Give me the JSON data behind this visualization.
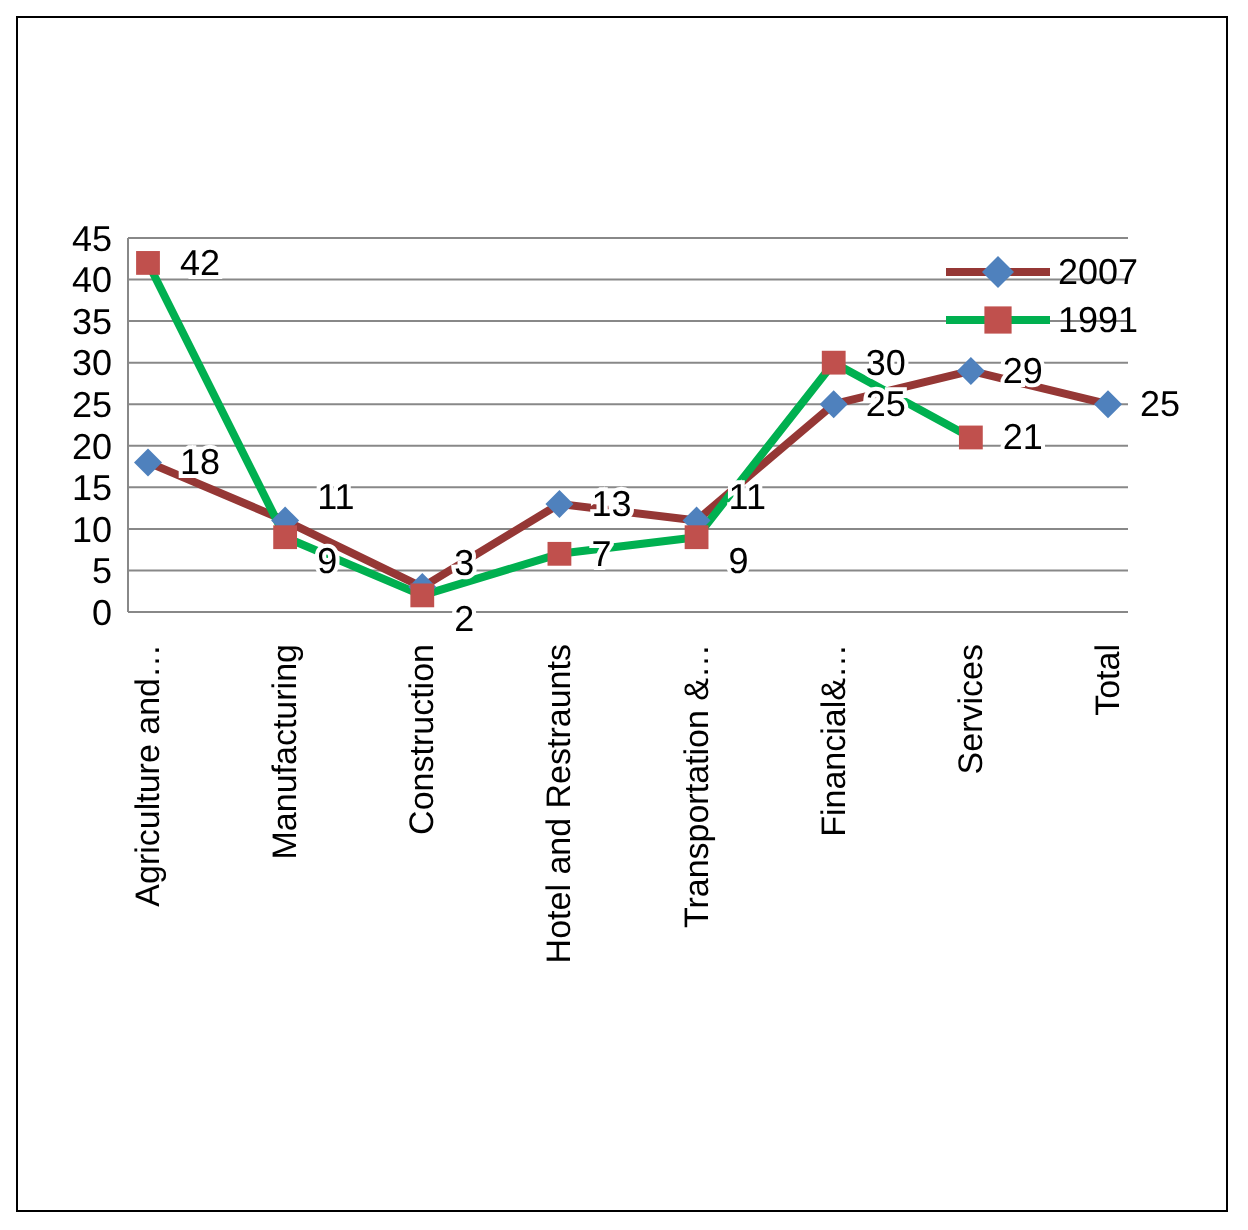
{
  "chart_data": {
    "type": "line",
    "categories": [
      "Agriculture and…",
      "Manufacturing",
      "Construction",
      "Hotel and Restraunts",
      "Transportation &…",
      "Financial&…",
      "Services",
      "Total"
    ],
    "series": [
      {
        "name": "2007",
        "color": "#953735",
        "marker": "diamond",
        "colors": [
          "#4f81bd",
          "#4f81bd",
          "#4f81bd",
          "#4f81bd",
          "#4f81bd",
          "#4f81bd",
          "#4f81bd",
          "#4f81bd"
        ],
        "values": [
          18,
          11,
          3,
          13,
          11,
          25,
          29,
          25
        ]
      },
      {
        "name": "1991",
        "color": "#00b050",
        "marker": "square",
        "colors": [
          "#c0504d",
          "#c0504d",
          "#c0504d",
          "#c0504d",
          "#c0504d",
          "#c0504d",
          "#c0504d",
          null
        ],
        "values": [
          42,
          9,
          2,
          7,
          9,
          30,
          21,
          null
        ]
      }
    ],
    "ylim": [
      0,
      45
    ],
    "yticks": [
      0,
      5,
      10,
      15,
      20,
      25,
      30,
      35,
      40,
      45
    ],
    "grid": "y",
    "legend": "top right",
    "data_labels": true
  }
}
